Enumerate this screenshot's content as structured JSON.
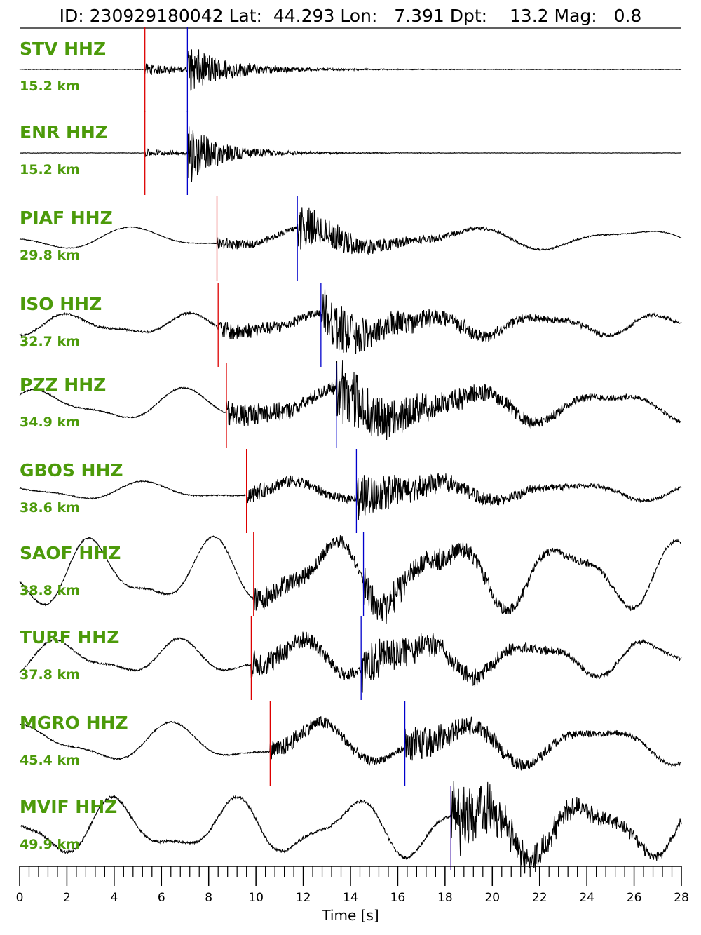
{
  "title": {
    "id_label": "ID:",
    "id": "230929180042",
    "lat_label": "Lat:",
    "lat": "44.293",
    "lon_label": "Lon:",
    "lon": "7.391",
    "dpt_label": "Dpt:",
    "dpt": "13.2",
    "mag_label": "Mag:",
    "mag": "0.8"
  },
  "colors": {
    "station_label": "#4c9a0a",
    "p_pick": "#dd0000",
    "s_pick": "#0000cc",
    "trace": "#000000"
  },
  "chart_data": {
    "type": "line",
    "title": "ID: 230929180042 Lat:  44.293 Lon:   7.391 Dpt:    13.2 Mag:   0.8",
    "xlabel": "Time [s]",
    "xlim": [
      0,
      28
    ],
    "x_major_ticks": [
      0,
      2,
      4,
      6,
      8,
      10,
      12,
      14,
      16,
      18,
      20,
      22,
      24,
      26,
      28
    ],
    "x_minor_tick_step": 0.4,
    "series": [
      {
        "name": "STV HHZ",
        "distance": "15.2 km",
        "p_time": 5.3,
        "s_time": 7.1
      },
      {
        "name": "ENR HHZ",
        "distance": "15.2 km",
        "p_time": 5.3,
        "s_time": 7.1
      },
      {
        "name": "PIAF HHZ",
        "distance": "29.8 km",
        "p_time": 8.35,
        "s_time": 11.75
      },
      {
        "name": "ISO HHZ",
        "distance": "32.7 km",
        "p_time": 8.4,
        "s_time": 12.75
      },
      {
        "name": "PZZ HHZ",
        "distance": "34.9 km",
        "p_time": 8.75,
        "s_time": 13.4
      },
      {
        "name": "GBOS HHZ",
        "distance": "38.6 km",
        "p_time": 9.6,
        "s_time": 14.25
      },
      {
        "name": "SAOF HHZ",
        "distance": "38.8 km",
        "p_time": 9.9,
        "s_time": 14.55
      },
      {
        "name": "TURF HHZ",
        "distance": "37.8 km",
        "p_time": 9.8,
        "s_time": 14.45
      },
      {
        "name": "MGRO HHZ",
        "distance": "45.4 km",
        "p_time": 10.6,
        "s_time": 16.3
      },
      {
        "name": "MVIF HHZ",
        "distance": "49.9 km",
        "p_time": 18.25,
        "s_time": 18.25
      }
    ]
  }
}
